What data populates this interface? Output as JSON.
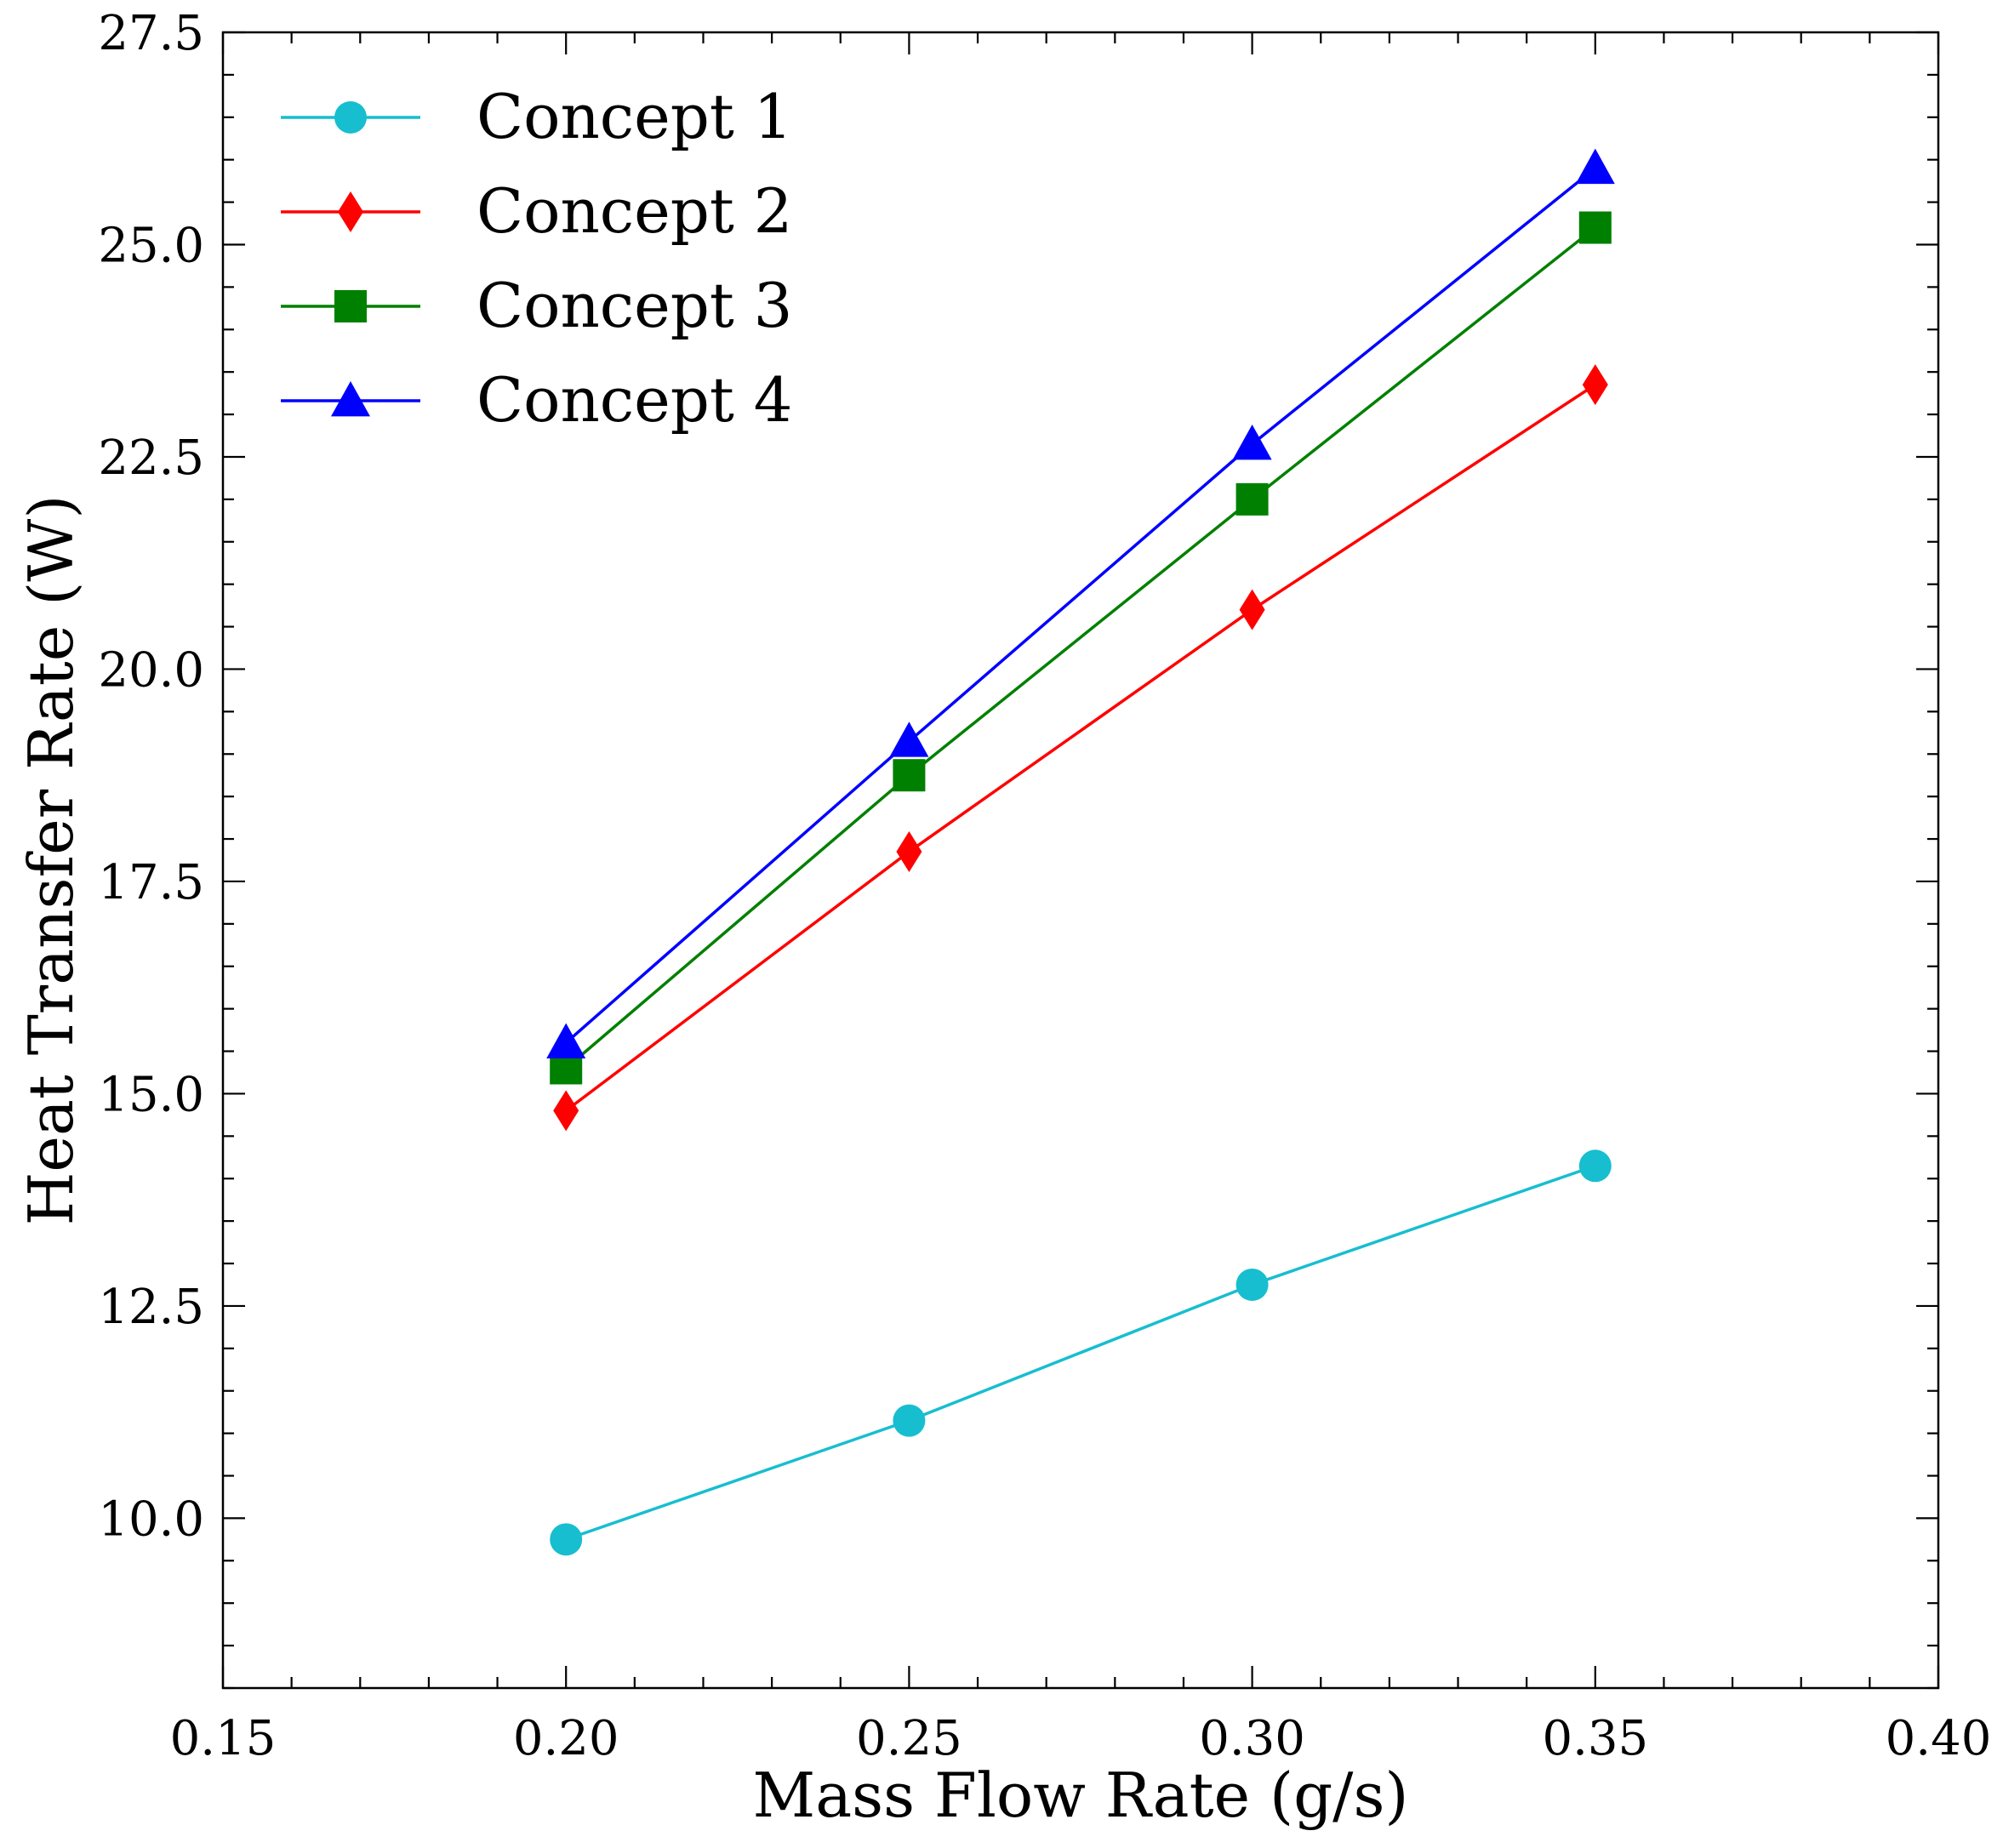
{
  "chart_data": {
    "type": "line",
    "title": "",
    "xlabel": "Mass Flow Rate (g/s)",
    "ylabel": "Heat Transfer Rate (W)",
    "xlim": [
      0.15,
      0.4
    ],
    "ylim": [
      8.0,
      27.5
    ],
    "grid": false,
    "legend_position": "top-left",
    "x_ticks": [
      {
        "value": 0.15,
        "label": "0.15"
      },
      {
        "value": 0.2,
        "label": "0.20"
      },
      {
        "value": 0.25,
        "label": "0.25"
      },
      {
        "value": 0.3,
        "label": "0.30"
      },
      {
        "value": 0.35,
        "label": "0.35"
      },
      {
        "value": 0.4,
        "label": "0.40"
      }
    ],
    "y_ticks": [
      {
        "value": 10.0,
        "label": "10.0"
      },
      {
        "value": 12.5,
        "label": "12.5"
      },
      {
        "value": 15.0,
        "label": "15.0"
      },
      {
        "value": 17.5,
        "label": "17.5"
      },
      {
        "value": 20.0,
        "label": "20.0"
      },
      {
        "value": 22.5,
        "label": "22.5"
      },
      {
        "value": 25.0,
        "label": "25.0"
      },
      {
        "value": 27.5,
        "label": "27.5"
      }
    ],
    "x": [
      0.2,
      0.25,
      0.3,
      0.35
    ],
    "series": [
      {
        "name": "Concept 1",
        "color": "#17becf",
        "marker": "circle",
        "values": [
          9.75,
          11.15,
          12.75,
          14.15
        ]
      },
      {
        "name": "Concept 2",
        "color": "#ff0000",
        "marker": "diamond",
        "values": [
          14.8,
          17.85,
          20.7,
          23.35
        ]
      },
      {
        "name": "Concept 3",
        "color": "#008000",
        "marker": "square",
        "values": [
          15.3,
          18.75,
          22.0,
          25.2
        ]
      },
      {
        "name": "Concept 4",
        "color": "#0000ff",
        "marker": "triangle",
        "values": [
          15.6,
          19.15,
          22.65,
          25.9
        ]
      }
    ]
  }
}
